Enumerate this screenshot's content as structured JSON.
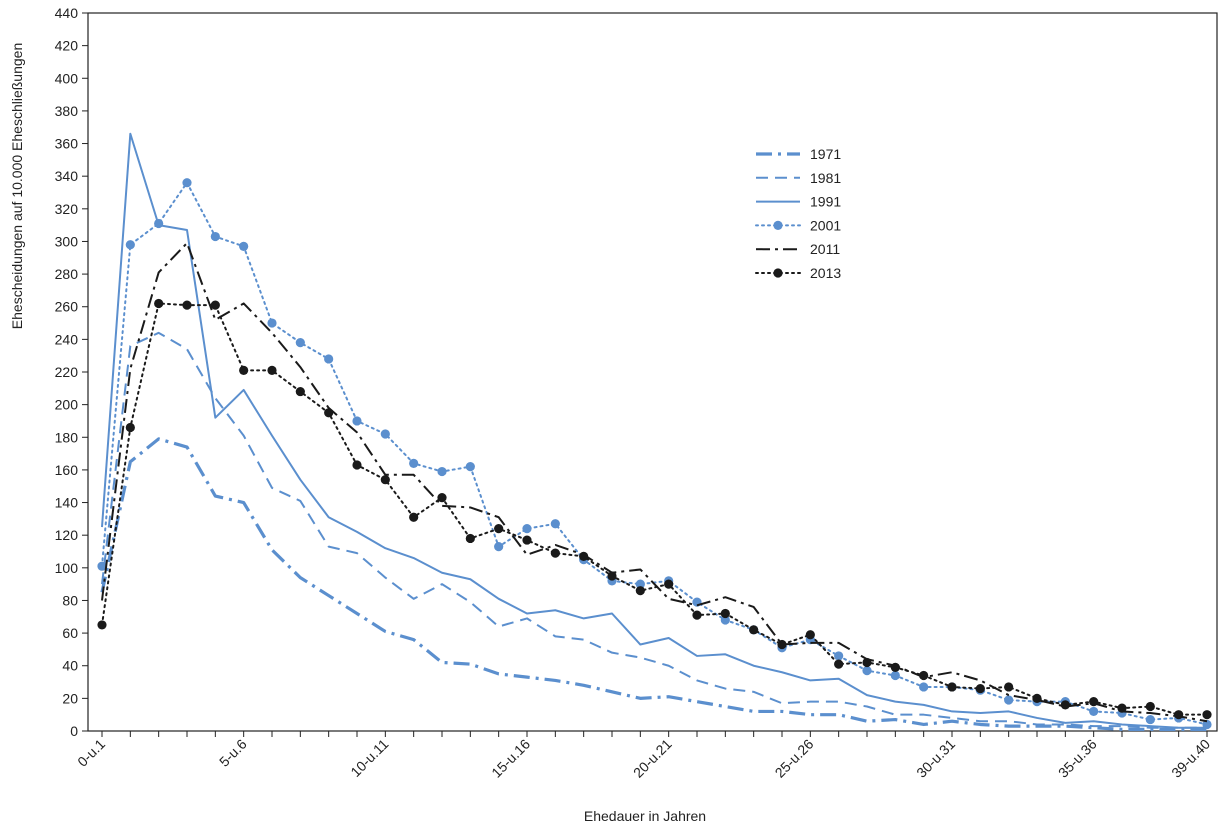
{
  "chart_data": {
    "type": "line",
    "title": "",
    "xlabel": "Ehedauer in Jahren",
    "ylabel": "Ehescheidungen auf 10.000 Eheschließungen",
    "ylim": [
      0,
      440
    ],
    "yticks": [
      0,
      20,
      40,
      60,
      80,
      100,
      120,
      140,
      160,
      180,
      200,
      220,
      240,
      260,
      280,
      300,
      320,
      340,
      360,
      380,
      400,
      420,
      440
    ],
    "x_tick_labels": [
      {
        "index": 0,
        "label": "0-u.1"
      },
      {
        "index": 5,
        "label": "5-u.6"
      },
      {
        "index": 10,
        "label": "10-u.11"
      },
      {
        "index": 15,
        "label": "15-u.16"
      },
      {
        "index": 20,
        "label": "20-u.21"
      },
      {
        "index": 25,
        "label": "25-u.26"
      },
      {
        "index": 30,
        "label": "30-u.31"
      },
      {
        "index": 35,
        "label": "35-u.36"
      },
      {
        "index": 39,
        "label": "39-u.40"
      }
    ],
    "grid": false,
    "legend_position": "upper-center-right",
    "series": [
      {
        "name": "1971",
        "color": "#5b8fce",
        "style": "dashdot-thick",
        "markers": false,
        "values": [
          85,
          165,
          179,
          174,
          144,
          140,
          111,
          94,
          83,
          72,
          61,
          56,
          42,
          41,
          35,
          33,
          31,
          28,
          24,
          20,
          21,
          18,
          15,
          12,
          12,
          10,
          10,
          6,
          7,
          4,
          6,
          4,
          3,
          3,
          3,
          2,
          1,
          1,
          1,
          1
        ]
      },
      {
        "name": "1981",
        "color": "#5b8fce",
        "style": "dashed",
        "markers": false,
        "values": [
          90,
          236,
          244,
          234,
          204,
          181,
          149,
          141,
          113,
          109,
          94,
          81,
          90,
          79,
          64,
          69,
          58,
          56,
          48,
          45,
          40,
          31,
          26,
          24,
          17,
          18,
          18,
          15,
          10,
          10,
          8,
          6,
          6,
          4,
          4,
          3,
          3,
          2,
          2,
          2
        ]
      },
      {
        "name": "1991",
        "color": "#5b8fce",
        "style": "solid",
        "markers": false,
        "values": [
          125,
          366,
          310,
          307,
          192,
          209,
          181,
          154,
          131,
          122,
          112,
          106,
          97,
          93,
          81,
          72,
          74,
          69,
          72,
          53,
          57,
          46,
          47,
          40,
          36,
          31,
          32,
          22,
          18,
          16,
          12,
          11,
          12,
          8,
          5,
          6,
          4,
          3,
          2,
          2
        ]
      },
      {
        "name": "2001",
        "color": "#5b8fce",
        "style": "dotted",
        "markers": true,
        "values": [
          101,
          298,
          311,
          336,
          303,
          297,
          250,
          238,
          228,
          190,
          182,
          164,
          159,
          162,
          113,
          124,
          127,
          105,
          92,
          90,
          92,
          79,
          68,
          62,
          51,
          56,
          46,
          37,
          34,
          27,
          27,
          25,
          19,
          18,
          18,
          12,
          11,
          7,
          8,
          4
        ]
      },
      {
        "name": "2011",
        "color": "#1a1a1a",
        "style": "dashdot",
        "markers": false,
        "values": [
          80,
          222,
          281,
          299,
          252,
          262,
          244,
          223,
          198,
          183,
          157,
          157,
          138,
          137,
          131,
          108,
          114,
          108,
          97,
          99,
          81,
          77,
          82,
          76,
          53,
          54,
          54,
          44,
          40,
          33,
          36,
          31,
          22,
          19,
          15,
          17,
          12,
          11,
          9,
          6
        ]
      },
      {
        "name": "2013",
        "color": "#1a1a1a",
        "style": "dotted",
        "markers": true,
        "values": [
          65,
          186,
          262,
          261,
          261,
          221,
          221,
          208,
          195,
          163,
          154,
          131,
          143,
          118,
          124,
          117,
          109,
          107,
          95,
          86,
          90,
          71,
          72,
          62,
          53,
          59,
          41,
          42,
          39,
          34,
          27,
          26,
          27,
          20,
          16,
          18,
          14,
          15,
          10,
          10
        ]
      }
    ]
  }
}
